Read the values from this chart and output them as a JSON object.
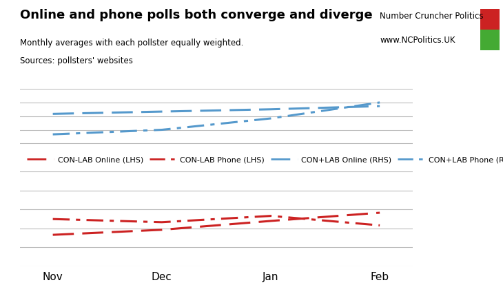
{
  "title": "Online and phone polls both converge and diverge",
  "subtitle1": "Monthly averages with each pollster equally weighted.",
  "subtitle2": "Sources: pollsters' websites",
  "branding1": "Number Cruncher Politics",
  "branding2": "www.NCPolitics.UK",
  "x_labels": [
    "Nov",
    "Dec",
    "Jan",
    "Feb"
  ],
  "x_values": [
    0,
    1,
    2,
    3
  ],
  "con_lab_online_lhs": [
    -15.0,
    -14.2,
    -12.8,
    -11.5
  ],
  "con_lab_phone_lhs": [
    -12.5,
    -13.0,
    -12.0,
    -13.5
  ],
  "con_plus_lab_online_rhs": [
    81.5,
    82.0,
    82.5,
    83.2
  ],
  "con_plus_lab_phone_rhs": [
    77.0,
    78.0,
    80.5,
    84.0
  ],
  "color_red": "#cc2222",
  "color_blue": "#5599cc",
  "bg_color": "#ffffff",
  "grid_color": "#bbbbbb",
  "brand_red": "#cc2222",
  "brand_green": "#44aa33",
  "upper_ylim": [
    74,
    87
  ],
  "lower_ylim": [
    -20,
    -5
  ],
  "upper_gridlines": [
    75,
    78,
    81,
    84,
    87
  ],
  "lower_gridlines": [
    -20,
    -17,
    -14,
    -11,
    -8,
    -5
  ]
}
